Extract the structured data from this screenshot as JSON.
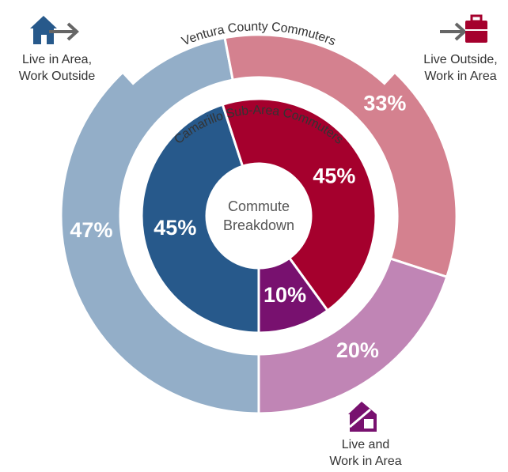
{
  "chart_data": {
    "type": "nested-donut",
    "center_label": [
      "Commute",
      "Breakdown"
    ],
    "categories": [
      [
        "Live in Area,",
        "Work Outside"
      ],
      [
        "Live Outside,",
        "Work in Area"
      ],
      [
        "Live and",
        "Work in Area"
      ]
    ],
    "series": [
      {
        "name": "Ventura County Commuters",
        "colors": [
          "#93aec8",
          "#d4818f",
          "#c085b5"
        ],
        "values": [
          47,
          33,
          20
        ],
        "value_labels": [
          "47%",
          "33%",
          "20%"
        ]
      },
      {
        "name": "Camarillo Sub-Area Commuters",
        "colors": [
          "#27598b",
          "#a5002d",
          "#78116f"
        ],
        "values": [
          45,
          45,
          10
        ],
        "value_labels": [
          "45%",
          "45%",
          "10%"
        ]
      }
    ]
  }
}
